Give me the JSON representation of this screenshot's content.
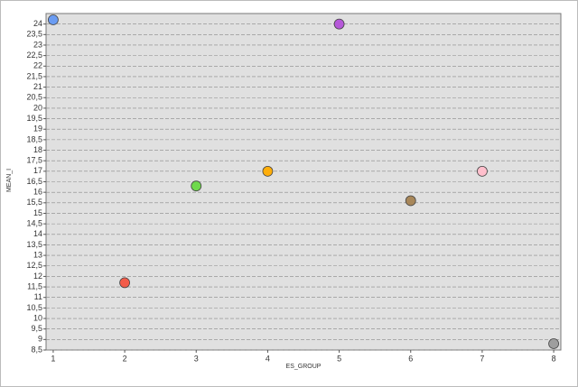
{
  "chart_data": {
    "type": "scatter",
    "x_label": "ES_GROUP",
    "y_label": "MEAN_I",
    "x": [
      1,
      2,
      3,
      4,
      5,
      6,
      7,
      8
    ],
    "values": [
      24.2,
      11.7,
      16.3,
      17,
      24,
      15.6,
      17,
      8.8
    ],
    "colors": [
      "#6b9cf2",
      "#f25c4a",
      "#6fd94c",
      "#ffae0a",
      "#b659d9",
      "#a8875a",
      "#ffbfcc",
      "#9e9e9e"
    ],
    "xlim": [
      0.9,
      8.1
    ],
    "xticks": [
      1,
      2,
      3,
      4,
      5,
      6,
      7,
      8
    ],
    "ylim": [
      8.5,
      24.5
    ],
    "yticks": [
      {
        "value": 8.5,
        "label": "8,5"
      },
      9,
      {
        "value": 9.5,
        "label": "9,5"
      },
      10,
      {
        "value": 10.5,
        "label": "10,5"
      },
      11,
      {
        "value": 11.5,
        "label": "11,5"
      },
      12,
      {
        "value": 12.5,
        "label": "12,5"
      },
      13,
      {
        "value": 13.5,
        "label": "13,5"
      },
      14,
      {
        "value": 14.5,
        "label": "14,5"
      },
      15,
      {
        "value": 15.5,
        "label": "15,5"
      },
      16,
      {
        "value": 16.5,
        "label": "16,5"
      },
      17,
      {
        "value": 17.5,
        "label": "17,5"
      },
      18,
      {
        "value": 18.5,
        "label": "18,5"
      },
      19,
      {
        "value": 19.5,
        "label": "19,5"
      },
      20,
      {
        "value": 20.5,
        "label": "20,5"
      },
      21,
      {
        "value": 21.5,
        "label": "21,5"
      },
      22,
      {
        "value": 22.5,
        "label": "22,5"
      },
      23,
      {
        "value": 23.5,
        "label": "23,5"
      },
      24
    ],
    "grid": true
  }
}
